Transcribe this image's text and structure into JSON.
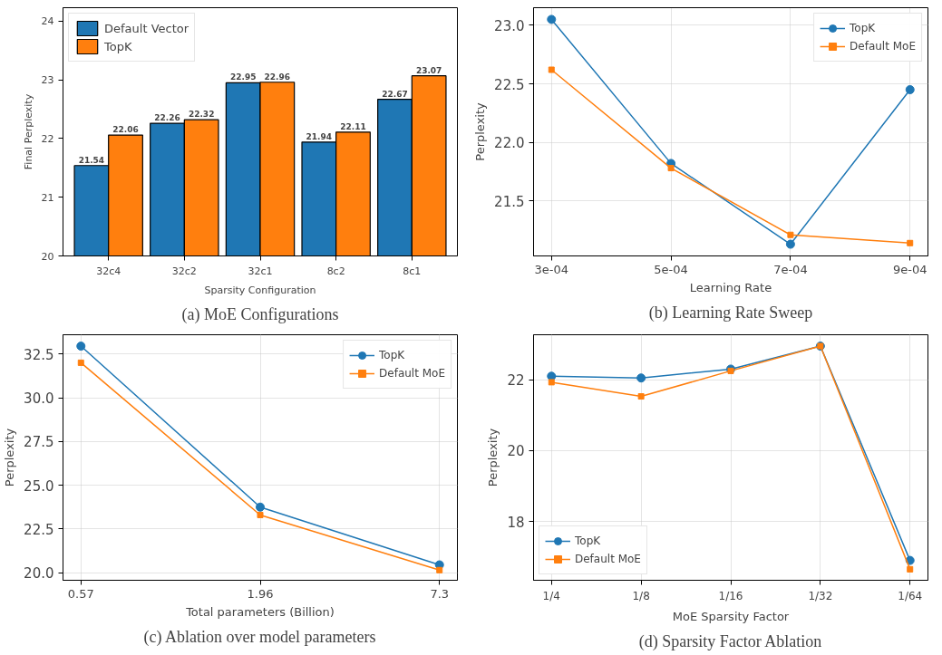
{
  "chart_data": [
    {
      "type": "bar",
      "title": "(a) MoE Configurations",
      "xlabel": "Sparsity Configuration",
      "ylabel": "Final Perplexity",
      "categories": [
        "32c4",
        "32c2",
        "32c1",
        "8c2",
        "8c1"
      ],
      "series": [
        {
          "name": "Default Vector",
          "color": "#1f77b4",
          "values": [
            21.54,
            22.26,
            22.95,
            21.94,
            22.67
          ]
        },
        {
          "name": "TopK",
          "color": "#ff7f0e",
          "values": [
            22.06,
            22.32,
            22.96,
            22.11,
            23.07
          ]
        }
      ],
      "ylim": [
        20,
        24.23
      ],
      "yticks": [
        20,
        21,
        22,
        23,
        24
      ],
      "data_labels": true,
      "legend": "top left"
    },
    {
      "type": "line",
      "title": "(b) Learning Rate Sweep",
      "xlabel": "Learning Rate",
      "ylabel": "Perplexity",
      "categories": [
        "3e-04",
        "5e-04",
        "7e-04",
        "9e-04"
      ],
      "series": [
        {
          "name": "TopK",
          "color": "#1f77b4",
          "marker": "circle",
          "values": [
            23.05,
            21.82,
            21.13,
            22.45
          ]
        },
        {
          "name": "Default MoE",
          "color": "#ff7f0e",
          "marker": "square",
          "values": [
            22.62,
            21.78,
            21.21,
            21.14
          ]
        }
      ],
      "ylim": [
        21.03,
        23.15
      ],
      "yticks": [
        {
          "value": 21.5,
          "label": "21.5"
        },
        {
          "value": 22,
          "label": "22.0"
        },
        {
          "value": 22.5,
          "label": "22.5"
        },
        {
          "value": 23,
          "label": "23.0"
        }
      ],
      "grid": true,
      "legend": "top right"
    },
    {
      "type": "line",
      "title": "(c) Ablation over model parameters",
      "xlabel": "Total parameters (Billion)",
      "ylabel": "Perplexity",
      "categories": [
        "0.57",
        "1.96",
        "7.3"
      ],
      "series": [
        {
          "name": "TopK",
          "color": "#1f77b4",
          "marker": "circle",
          "values": [
            32.95,
            23.75,
            20.45
          ]
        },
        {
          "name": "Default MoE",
          "color": "#ff7f0e",
          "marker": "square",
          "values": [
            32.0,
            23.3,
            20.15
          ]
        }
      ],
      "ylim": [
        19.57,
        33.6
      ],
      "yticks": [
        {
          "value": 20,
          "label": "20.0"
        },
        22.5,
        {
          "value": 25,
          "label": "25.0"
        },
        27.5,
        {
          "value": 30,
          "label": "30.0"
        },
        32.5
      ],
      "grid": true,
      "legend": "top right"
    },
    {
      "type": "line",
      "title": "(d) Sparsity Factor Ablation",
      "xlabel": "MoE Sparsity Factor",
      "ylabel": "Perplexity",
      "categories": [
        "1/4",
        "1/8",
        "1/16",
        "1/32",
        "1/64"
      ],
      "series": [
        {
          "name": "TopK",
          "color": "#1f77b4",
          "marker": "circle",
          "values": [
            22.1,
            22.05,
            22.3,
            22.95,
            16.9
          ]
        },
        {
          "name": "Default MoE",
          "color": "#ff7f0e",
          "marker": "square",
          "values": [
            21.93,
            21.53,
            22.25,
            22.95,
            16.65
          ]
        }
      ],
      "ylim": [
        16.34,
        23.27
      ],
      "yticks": [
        18,
        20,
        22
      ],
      "grid": true,
      "legend": "bottom left"
    }
  ]
}
